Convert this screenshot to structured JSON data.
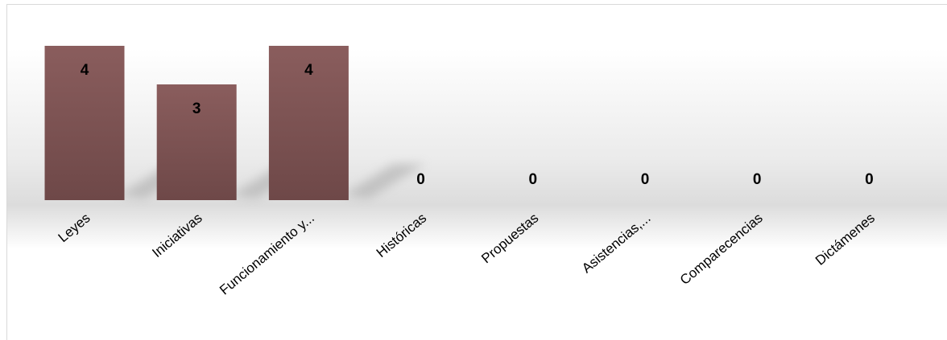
{
  "chart_data": {
    "type": "bar",
    "categories": [
      "Leyes",
      "Iniciativas",
      "Funcionamiento y...",
      "Históricas",
      "Propuestas",
      "Asistencias,...",
      "Comparecencias",
      "Dictámenes"
    ],
    "values": [
      4,
      3,
      4,
      0,
      0,
      0,
      0,
      0
    ],
    "data_labels": [
      "4",
      "3",
      "4",
      "0",
      "0",
      "0",
      "0",
      "0"
    ],
    "title": "",
    "xlabel": "",
    "ylabel": "",
    "ylim": [
      0,
      4
    ],
    "grid": false,
    "legend": "none",
    "bar_color_top": "#8a5d5d",
    "bar_color_bottom": "#6e4848",
    "background_band_color": "#d9d9d9"
  }
}
